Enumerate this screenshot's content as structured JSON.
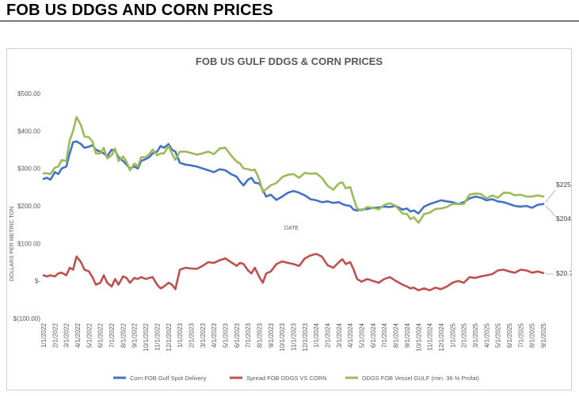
{
  "page": {
    "heading": "FOB US DDGS AND CORN PRICES"
  },
  "chart_data": {
    "type": "line",
    "title": "FOB US GULF DDGS & CORN PRICES",
    "xlabel": "DATE",
    "ylabel": "DOLLARS PER METRIC TON",
    "ylim": [
      -100,
      500
    ],
    "y_ticks": [
      {
        "value": 500,
        "label": "$500.00"
      },
      {
        "value": 400,
        "label": "$400.00"
      },
      {
        "value": 300,
        "label": "$300.00"
      },
      {
        "value": 200,
        "label": "$200.00"
      },
      {
        "value": 100,
        "label": "$100.00"
      },
      {
        "value": 0,
        "label": "$-"
      },
      {
        "value": -100,
        "label": "$(100.00)"
      }
    ],
    "x_tick_labels": [
      "1/1/2022",
      "2/1/2022",
      "3/1/2022",
      "4/1/2022",
      "5/1/2022",
      "6/1/2022",
      "7/1/2022",
      "8/1/2022",
      "9/1/2022",
      "10/1/2022",
      "11/1/2022",
      "12/1/2022",
      "1/1/2023",
      "2/1/2023",
      "3/1/2023",
      "4/1/2023",
      "5/1/2023",
      "6/1/2023",
      "7/1/2023",
      "8/1/2023",
      "9/1/2023",
      "10/1/2023",
      "11/1/2023",
      "12/1/2023",
      "1/1/2024",
      "2/1/2024",
      "3/1/2024",
      "4/1/2024",
      "5/1/2024",
      "6/1/2024",
      "7/1/2024",
      "8/1/2024",
      "9/1/2024",
      "10/1/2024",
      "11/1/2024",
      "12/1/2024",
      "1/1/2025",
      "2/1/2025",
      "3/1/2025",
      "4/1/2025",
      "5/1/2025",
      "6/1/2025",
      "7/1/2025",
      "8/1/2025",
      "9/1/2025"
    ],
    "legend_position": "bottom",
    "grid": false,
    "series": [
      {
        "name": "Corn FOB Gulf Spot Delivery",
        "color": "#4472c4",
        "x": [
          0,
          0.3,
          0.6,
          1,
          1.3,
          1.6,
          2,
          2.3,
          2.6,
          2.9,
          3.3,
          3.6,
          4,
          4.3,
          4.6,
          5,
          5.3,
          5.6,
          6,
          6.3,
          6.6,
          7,
          7.3,
          7.6,
          8,
          8.3,
          8.6,
          9,
          9.3,
          9.6,
          10,
          10.3,
          10.6,
          11,
          11.3,
          11.6,
          12,
          12.5,
          13,
          13.5,
          14,
          14.5,
          15,
          15.5,
          16,
          16.5,
          17,
          17.3,
          17.6,
          18,
          18.3,
          18.6,
          19,
          19.3,
          19.6,
          20,
          20.5,
          21,
          21.5,
          22,
          22.5,
          23,
          23.5,
          24,
          24.5,
          25,
          25.5,
          26,
          26.3,
          26.6,
          27,
          27.3,
          27.6,
          28,
          28.5,
          29,
          29.5,
          30,
          30.5,
          31,
          31.3,
          31.6,
          32,
          32.3,
          32.6,
          33,
          33.5,
          34,
          34.5,
          35,
          35.5,
          36,
          36.5,
          37,
          37.5,
          38,
          38.5,
          39,
          39.5,
          40,
          40.5,
          41,
          41.5,
          42,
          42.5,
          43,
          43.5,
          44
        ],
        "values": [
          272,
          275,
          270,
          290,
          285,
          300,
          305,
          340,
          370,
          372,
          365,
          355,
          358,
          362,
          350,
          345,
          340,
          332,
          350,
          348,
          330,
          320,
          310,
          300,
          305,
          300,
          320,
          325,
          330,
          340,
          345,
          360,
          355,
          365,
          350,
          345,
          315,
          310,
          308,
          305,
          300,
          295,
          290,
          298,
          295,
          285,
          278,
          265,
          255,
          270,
          275,
          262,
          260,
          242,
          225,
          230,
          216,
          225,
          235,
          240,
          235,
          228,
          218,
          215,
          210,
          212,
          208,
          210,
          205,
          202,
          200,
          190,
          188,
          190,
          192,
          195,
          196,
          198,
          197,
          200,
          195,
          190,
          193,
          185,
          188,
          180,
          198,
          205,
          210,
          215,
          212,
          210,
          205,
          210,
          220,
          225,
          222,
          215,
          218,
          212,
          210,
          205,
          200,
          198,
          200,
          195,
          203,
          205
        ],
        "end_label": "$204.22"
      },
      {
        "name": "Spread FOB DDGS VS CORN",
        "color": "#c0504d",
        "x": [
          0,
          0.3,
          0.6,
          1,
          1.3,
          1.6,
          2,
          2.3,
          2.6,
          2.9,
          3.3,
          3.6,
          4,
          4.3,
          4.6,
          5,
          5.3,
          5.6,
          6,
          6.3,
          6.6,
          7,
          7.3,
          7.6,
          8,
          8.3,
          8.6,
          9,
          9.3,
          9.6,
          10,
          10.3,
          10.6,
          11,
          11.3,
          11.6,
          12,
          12.5,
          13,
          13.5,
          14,
          14.5,
          15,
          15.5,
          16,
          16.5,
          17,
          17.3,
          17.6,
          18,
          18.3,
          18.6,
          19,
          19.3,
          19.6,
          20,
          20.5,
          21,
          21.5,
          22,
          22.5,
          23,
          23.5,
          24,
          24.5,
          25,
          25.5,
          26,
          26.3,
          26.6,
          27,
          27.3,
          27.6,
          28,
          28.5,
          29,
          29.5,
          30,
          30.5,
          31,
          31.3,
          31.6,
          32,
          32.3,
          32.6,
          33,
          33.5,
          34,
          34.5,
          35,
          35.5,
          36,
          36.5,
          37,
          37.5,
          38,
          38.5,
          39,
          39.5,
          40,
          40.5,
          41,
          41.5,
          42,
          42.5,
          43,
          43.5,
          44
        ],
        "values": [
          15,
          12,
          15,
          12,
          20,
          22,
          15,
          35,
          30,
          65,
          50,
          30,
          25,
          10,
          -10,
          -5,
          15,
          -5,
          -15,
          5,
          -10,
          12,
          8,
          -5,
          8,
          5,
          10,
          5,
          8,
          10,
          -10,
          -20,
          -15,
          -5,
          -10,
          -22,
          30,
          35,
          33,
          32,
          40,
          50,
          48,
          55,
          60,
          50,
          40,
          48,
          45,
          28,
          20,
          35,
          10,
          -5,
          20,
          25,
          45,
          52,
          48,
          45,
          40,
          60,
          68,
          72,
          65,
          42,
          35,
          50,
          58,
          45,
          50,
          30,
          5,
          -2,
          5,
          0,
          -5,
          5,
          10,
          0,
          -5,
          -10,
          -15,
          -20,
          -18,
          -25,
          -20,
          -25,
          -18,
          -22,
          -15,
          -5,
          0,
          -5,
          10,
          8,
          12,
          15,
          18,
          28,
          30,
          25,
          22,
          30,
          28,
          22,
          25,
          21
        ]
      },
      {
        "name": "DDGS FOB Vessel GULF  (min. 36 % Profat)",
        "color": "#9bbb59",
        "x": [
          0,
          0.3,
          0.6,
          1,
          1.3,
          1.6,
          2,
          2.3,
          2.6,
          2.9,
          3.3,
          3.6,
          4,
          4.3,
          4.6,
          5,
          5.3,
          5.6,
          6,
          6.3,
          6.6,
          7,
          7.3,
          7.6,
          8,
          8.3,
          8.6,
          9,
          9.3,
          9.6,
          10,
          10.3,
          10.6,
          11,
          11.3,
          11.6,
          12,
          12.5,
          13,
          13.5,
          14,
          14.5,
          15,
          15.5,
          16,
          16.5,
          17,
          17.3,
          17.6,
          18,
          18.3,
          18.6,
          19,
          19.3,
          19.6,
          20,
          20.5,
          21,
          21.5,
          22,
          22.5,
          23,
          23.5,
          24,
          24.5,
          25,
          25.5,
          26,
          26.3,
          26.6,
          27,
          27.3,
          27.6,
          28,
          28.5,
          29,
          29.5,
          30,
          30.5,
          31,
          31.3,
          31.6,
          32,
          32.3,
          32.6,
          33,
          33.5,
          34,
          34.5,
          35,
          35.5,
          36,
          36.5,
          37,
          37.5,
          38,
          38.5,
          39,
          39.5,
          40,
          40.5,
          41,
          41.5,
          42,
          42.5,
          43,
          43.5,
          44
        ],
        "values": [
          287,
          287,
          285,
          302,
          305,
          322,
          320,
          375,
          400,
          437,
          415,
          385,
          383,
          372,
          340,
          340,
          355,
          327,
          335,
          353,
          320,
          332,
          318,
          295,
          313,
          305,
          330,
          330,
          338,
          350,
          335,
          340,
          340,
          360,
          340,
          323,
          345,
          345,
          341,
          337,
          340,
          345,
          338,
          353,
          355,
          335,
          318,
          313,
          300,
          298,
          295,
          297,
          270,
          237,
          245,
          255,
          261,
          277,
          283,
          285,
          275,
          288,
          286,
          287,
          275,
          254,
          243,
          260,
          263,
          247,
          250,
          220,
          193,
          188,
          197,
          195,
          191,
          203,
          207,
          200,
          190,
          180,
          178,
          165,
          170,
          155,
          178,
          182,
          192,
          193,
          197,
          205,
          205,
          205,
          230,
          233,
          232,
          220,
          228,
          222,
          235,
          235,
          228,
          230,
          225,
          225,
          228,
          225
        ],
        "end_label": "$225.00"
      }
    ],
    "annotations": [
      {
        "series": 2,
        "text": "$225.00"
      },
      {
        "series": 0,
        "text": "$204.22"
      },
      {
        "series": 1,
        "text": "$20.78"
      }
    ]
  }
}
